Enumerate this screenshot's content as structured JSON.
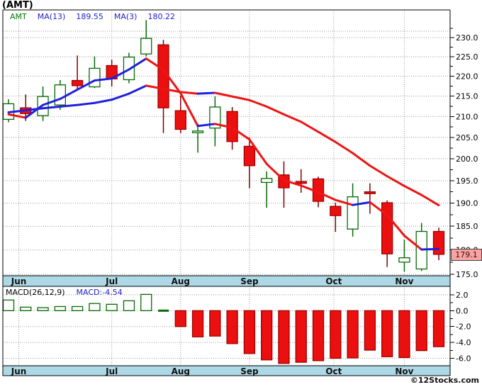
{
  "window": {
    "title": "(AMT)"
  },
  "branding": {
    "copyright": "©12Stocks.com"
  },
  "price_panel": {
    "legend": {
      "symbol": "AMT",
      "ma13_label": "MA(13)",
      "ma13_value": "189.55",
      "ma3_label": "MA(3)",
      "ma3_value": "180.22"
    },
    "last_price_label": "179.1"
  },
  "macd_panel": {
    "legend_label": "MACD(26,12,9)",
    "legend_value": "MACD:-4.54"
  },
  "colors": {
    "up_stroke": "#066A06",
    "up_fill": "#FFFFFF",
    "down_fill": "#EC0F0F",
    "down_stroke": "#A00000",
    "wick_up": "#066A06",
    "wick_down": "#7E0000",
    "ma_rising": "#2020DD",
    "ma_falling": "#EE1515",
    "grid": "#9A9A9A",
    "border": "#000000",
    "month_bar": "#ADD9E6",
    "month_text": "#111111",
    "axis_text": "#000000",
    "last_price_bg": "#F8A2A2"
  },
  "chart_data": [
    {
      "type": "candlestick",
      "title": "AMT weekly candles with MA(13) and MA(3)",
      "interval": "weekly",
      "y_axis": {
        "scale": "log",
        "ticks": [
          230,
          225,
          220,
          215,
          210,
          205,
          200,
          195,
          190,
          185,
          180,
          175
        ],
        "tick_labels": [
          "230.0",
          "225.0",
          "220.0",
          "215.0",
          "210.0",
          "205.0",
          "200.0",
          "195.0",
          "190.0",
          "185.0",
          "180.0",
          "175.0"
        ],
        "minor_step": 2.5
      },
      "x_axis": {
        "month_labels": [
          "Jun",
          "Jul",
          "Aug",
          "Sep",
          "Oct",
          "Nov"
        ],
        "month_week_positions": [
          1.6,
          7,
          11,
          15,
          19.9,
          24
        ]
      },
      "candles": [
        {
          "o": 209.3,
          "h": 214.2,
          "l": 208.6,
          "c": 213.1
        },
        {
          "o": 212.1,
          "h": 215.4,
          "l": 208.9,
          "c": 210.7
        },
        {
          "o": 210.2,
          "h": 217.4,
          "l": 208.9,
          "c": 214.9
        },
        {
          "o": 212.8,
          "h": 219.0,
          "l": 211.6,
          "c": 217.8
        },
        {
          "o": 218.9,
          "h": 225.3,
          "l": 216.4,
          "c": 217.6
        },
        {
          "o": 217.3,
          "h": 225.1,
          "l": 217.0,
          "c": 222.0
        },
        {
          "o": 222.7,
          "h": 224.2,
          "l": 217.4,
          "c": 219.3
        },
        {
          "o": 219.1,
          "h": 226.0,
          "l": 218.2,
          "c": 224.9
        },
        {
          "o": 225.7,
          "h": 234.7,
          "l": 225.1,
          "c": 229.8
        },
        {
          "o": 228.1,
          "h": 229.4,
          "l": 206.0,
          "c": 212.1
        },
        {
          "o": 211.4,
          "h": 215.1,
          "l": 206.0,
          "c": 206.9
        },
        {
          "o": 206.1,
          "h": 208.3,
          "l": 201.4,
          "c": 206.5
        },
        {
          "o": 207.2,
          "h": 214.9,
          "l": 202.9,
          "c": 212.3
        },
        {
          "o": 211.2,
          "h": 212.3,
          "l": 202.1,
          "c": 204.0
        },
        {
          "o": 202.9,
          "h": 205.0,
          "l": 193.3,
          "c": 198.4
        },
        {
          "o": 194.6,
          "h": 197.1,
          "l": 189.0,
          "c": 195.5
        },
        {
          "o": 196.3,
          "h": 199.4,
          "l": 189.0,
          "c": 193.4
        },
        {
          "o": 194.8,
          "h": 197.6,
          "l": 192.3,
          "c": 194.4
        },
        {
          "o": 195.4,
          "h": 195.9,
          "l": 189.1,
          "c": 190.4
        },
        {
          "o": 189.3,
          "h": 190.1,
          "l": 183.8,
          "c": 187.3
        },
        {
          "o": 184.4,
          "h": 194.4,
          "l": 182.8,
          "c": 191.4
        },
        {
          "o": 192.5,
          "h": 194.4,
          "l": 187.7,
          "c": 192.1
        },
        {
          "o": 190.1,
          "h": 190.6,
          "l": 176.5,
          "c": 179.2
        },
        {
          "o": 177.5,
          "h": 182.2,
          "l": 175.6,
          "c": 178.4
        },
        {
          "o": 176.1,
          "h": 185.7,
          "l": 175.7,
          "c": 183.9
        },
        {
          "o": 183.9,
          "h": 184.7,
          "l": 177.9,
          "c": 179.1
        }
      ],
      "ma13": {
        "period": 13,
        "values": [
          211.0,
          211.5,
          212.0,
          212.4,
          212.8,
          213.3,
          214.1,
          215.6,
          217.6,
          216.8,
          216.0,
          215.6,
          215.8,
          214.9,
          214.0,
          212.4,
          210.5,
          208.7,
          206.3,
          203.9,
          201.3,
          198.4,
          196.0,
          193.8,
          191.8,
          189.55
        ]
      },
      "ma3": {
        "period": 3,
        "values": [
          210.5,
          209.7,
          212.8,
          214.3,
          216.6,
          218.9,
          219.4,
          221.7,
          224.5,
          221.6,
          215.7,
          207.7,
          208.2,
          207.3,
          204.5,
          198.8,
          195.1,
          193.9,
          192.4,
          190.7,
          189.6,
          190.2,
          187.4,
          183.0,
          180.1,
          180.22
        ]
      },
      "last_price": 179.1
    },
    {
      "type": "bar",
      "title": "MACD(26,12,9) histogram",
      "values": [
        1.34,
        0.44,
        0.38,
        0.52,
        0.52,
        0.9,
        0.8,
        1.25,
        2.05,
        0.05,
        -2.0,
        -3.3,
        -3.2,
        -4.15,
        -5.4,
        -6.2,
        -6.65,
        -6.5,
        -6.3,
        -6.0,
        -5.95,
        -4.97,
        -5.8,
        -5.9,
        -5.03,
        -4.54
      ],
      "y_axis": {
        "ticks": [
          2,
          0,
          -2,
          -4,
          -6
        ],
        "tick_labels": [
          "2.0",
          "0.0",
          "-2.0",
          "-4.0",
          "-6.0"
        ],
        "minor_step": 1
      },
      "last_value": -4.54
    }
  ]
}
